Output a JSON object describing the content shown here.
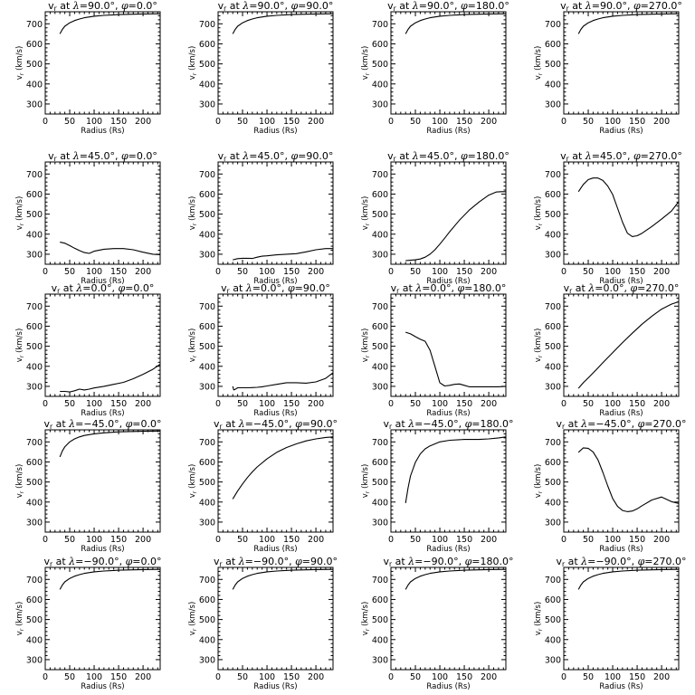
{
  "chart_data": [
    {
      "type": "line",
      "title": "v$_r$ at λ=90.0°, φ=0.0°",
      "title_parts": [
        "v",
        "r",
        " at ",
        "λ",
        "=90.0°, ",
        "φ",
        "=0.0°"
      ],
      "xlabel": "Radius (Rs)",
      "ylabel": "v$_r$ (km/s)",
      "xlim": [
        0,
        235
      ],
      "ylim": [
        250,
        760
      ],
      "xticks": [
        0,
        50,
        100,
        150,
        200
      ],
      "yticks": [
        300,
        400,
        500,
        600,
        700
      ],
      "x": [
        30,
        35,
        40,
        50,
        60,
        70,
        80,
        100,
        120,
        150,
        180,
        200,
        235
      ],
      "y": [
        650,
        672,
        688,
        705,
        716,
        724,
        730,
        738,
        742,
        746,
        748,
        749,
        750
      ]
    },
    {
      "type": "line",
      "title": "v$_r$ at λ=90.0°, φ=90.0°",
      "title_parts": [
        "v",
        "r",
        " at ",
        "λ",
        "=90.0°, ",
        "φ",
        "=90.0°"
      ],
      "xlabel": "Radius (Rs)",
      "ylabel": "v$_r$ (km/s)",
      "xlim": [
        0,
        235
      ],
      "ylim": [
        250,
        760
      ],
      "xticks": [
        0,
        50,
        100,
        150,
        200
      ],
      "yticks": [
        300,
        400,
        500,
        600,
        700
      ],
      "x": [
        30,
        35,
        40,
        50,
        60,
        70,
        80,
        100,
        120,
        150,
        180,
        200,
        235
      ],
      "y": [
        650,
        672,
        688,
        705,
        716,
        724,
        730,
        738,
        742,
        746,
        748,
        749,
        750
      ]
    },
    {
      "type": "line",
      "title": "v$_r$ at λ=90.0°, φ=180.0°",
      "title_parts": [
        "v",
        "r",
        " at ",
        "λ",
        "=90.0°, ",
        "φ",
        "=180.0°"
      ],
      "xlabel": "Radius (Rs)",
      "ylabel": "v$_r$ (km/s)",
      "xlim": [
        0,
        235
      ],
      "ylim": [
        250,
        760
      ],
      "xticks": [
        0,
        50,
        100,
        150,
        200
      ],
      "yticks": [
        300,
        400,
        500,
        600,
        700
      ],
      "x": [
        30,
        35,
        40,
        50,
        60,
        70,
        80,
        100,
        120,
        150,
        180,
        200,
        235
      ],
      "y": [
        650,
        672,
        688,
        705,
        716,
        724,
        730,
        738,
        742,
        746,
        748,
        749,
        750
      ]
    },
    {
      "type": "line",
      "title": "v$_r$ at λ=90.0°, φ=270.0°",
      "title_parts": [
        "v",
        "r",
        " at ",
        "λ",
        "=90.0°, ",
        "φ",
        "=270.0°"
      ],
      "xlabel": "Radius (Rs)",
      "ylabel": "v$_r$ (km/s)",
      "xlim": [
        0,
        235
      ],
      "ylim": [
        250,
        760
      ],
      "xticks": [
        0,
        50,
        100,
        150,
        200
      ],
      "yticks": [
        300,
        400,
        500,
        600,
        700
      ],
      "x": [
        30,
        35,
        40,
        50,
        60,
        70,
        80,
        100,
        120,
        150,
        180,
        200,
        235
      ],
      "y": [
        650,
        672,
        688,
        705,
        716,
        724,
        730,
        738,
        742,
        746,
        748,
        749,
        750
      ]
    },
    {
      "type": "line",
      "title": "v$_r$ at λ=45.0°, φ=0.0°",
      "title_parts": [
        "v",
        "r",
        " at ",
        "λ",
        "=45.0°, ",
        "φ",
        "=0.0°"
      ],
      "xlabel": "Radius (Rs)",
      "ylabel": "v$_r$ (km/s)",
      "xlim": [
        0,
        235
      ],
      "ylim": [
        250,
        760
      ],
      "xticks": [
        0,
        50,
        100,
        150,
        200
      ],
      "yticks": [
        300,
        400,
        500,
        600,
        700
      ],
      "x": [
        30,
        40,
        50,
        60,
        70,
        80,
        90,
        100,
        120,
        140,
        160,
        180,
        200,
        220,
        235
      ],
      "y": [
        360,
        355,
        343,
        330,
        318,
        308,
        304,
        315,
        325,
        328,
        328,
        322,
        310,
        300,
        298
      ]
    },
    {
      "type": "line",
      "title": "v$_r$ at λ=45.0°, φ=90.0°",
      "title_parts": [
        "v",
        "r",
        " at ",
        "λ",
        "=45.0°, ",
        "φ",
        "=90.0°"
      ],
      "xlabel": "Radius (Rs)",
      "ylabel": "v$_r$ (km/s)",
      "xlim": [
        0,
        235
      ],
      "ylim": [
        250,
        760
      ],
      "xticks": [
        0,
        50,
        100,
        150,
        200
      ],
      "yticks": [
        300,
        400,
        500,
        600,
        700
      ],
      "x": [
        30,
        40,
        50,
        60,
        70,
        80,
        90,
        100,
        120,
        140,
        160,
        180,
        200,
        220,
        235
      ],
      "y": [
        272,
        278,
        280,
        280,
        279,
        285,
        290,
        292,
        297,
        300,
        303,
        312,
        322,
        328,
        328
      ]
    },
    {
      "type": "line",
      "title": "v$_r$ at λ=45.0°, φ=180.0°",
      "title_parts": [
        "v",
        "r",
        " at ",
        "λ",
        "=45.0°, ",
        "φ",
        "=180.0°"
      ],
      "xlabel": "Radius (Rs)",
      "ylabel": "v$_r$ (km/s)",
      "xlim": [
        0,
        235
      ],
      "ylim": [
        250,
        760
      ],
      "xticks": [
        0,
        50,
        100,
        150,
        200
      ],
      "yticks": [
        300,
        400,
        500,
        600,
        700
      ],
      "x": [
        30,
        40,
        50,
        60,
        70,
        80,
        90,
        100,
        110,
        120,
        140,
        160,
        180,
        200,
        215,
        225,
        235
      ],
      "y": [
        268,
        270,
        272,
        276,
        285,
        300,
        322,
        350,
        380,
        412,
        470,
        520,
        560,
        595,
        610,
        612,
        612
      ]
    },
    {
      "type": "line",
      "title": "v$_r$ at λ=45.0°, φ=270.0°",
      "title_parts": [
        "v",
        "r",
        " at ",
        "λ",
        "=45.0°, ",
        "φ",
        "=270.0°"
      ],
      "xlabel": "Radius (Rs)",
      "ylabel": "v$_r$ (km/s)",
      "xlim": [
        0,
        235
      ],
      "ylim": [
        250,
        760
      ],
      "xticks": [
        0,
        50,
        100,
        150,
        200
      ],
      "yticks": [
        300,
        400,
        500,
        600,
        700
      ],
      "x": [
        30,
        40,
        50,
        60,
        70,
        80,
        90,
        100,
        110,
        120,
        130,
        140,
        150,
        160,
        180,
        200,
        220,
        235
      ],
      "y": [
        612,
        648,
        672,
        680,
        680,
        668,
        640,
        598,
        530,
        460,
        405,
        388,
        392,
        405,
        438,
        475,
        515,
        562
      ]
    },
    {
      "type": "line",
      "title": "v$_r$ at λ=0.0°, φ=0.0°",
      "title_parts": [
        "v",
        "r",
        " at ",
        "λ",
        "=0.0°, ",
        "φ",
        "=0.0°"
      ],
      "xlabel": "Radius (Rs)",
      "ylabel": "v$_r$ (km/s)",
      "xlim": [
        0,
        235
      ],
      "ylim": [
        250,
        760
      ],
      "xticks": [
        0,
        50,
        100,
        150,
        200
      ],
      "yticks": [
        300,
        400,
        500,
        600,
        700
      ],
      "x": [
        30,
        40,
        50,
        60,
        70,
        80,
        90,
        100,
        120,
        140,
        160,
        180,
        200,
        220,
        235
      ],
      "y": [
        275,
        275,
        272,
        278,
        286,
        282,
        286,
        292,
        300,
        310,
        320,
        338,
        360,
        385,
        410
      ]
    },
    {
      "type": "line",
      "title": "v$_r$ at λ=0.0°, φ=90.0°",
      "title_parts": [
        "v",
        "r",
        " at ",
        "λ",
        "=0.0°, ",
        "φ",
        "=90.0°"
      ],
      "xlabel": "Radius (Rs)",
      "ylabel": "v$_r$ (km/s)",
      "xlim": [
        0,
        235
      ],
      "ylim": [
        250,
        760
      ],
      "xticks": [
        0,
        50,
        100,
        150,
        200
      ],
      "yticks": [
        300,
        400,
        500,
        600,
        700
      ],
      "x": [
        30,
        32,
        35,
        40,
        50,
        60,
        70,
        80,
        90,
        100,
        120,
        140,
        160,
        180,
        200,
        220,
        235
      ],
      "y": [
        300,
        282,
        285,
        293,
        293,
        293,
        294,
        295,
        298,
        302,
        310,
        318,
        318,
        316,
        322,
        340,
        368
      ]
    },
    {
      "type": "line",
      "title": "v$_r$ at λ=0.0°, φ=180.0°",
      "title_parts": [
        "v",
        "r",
        " at ",
        "λ",
        "=0.0°, ",
        "φ",
        "=180.0°"
      ],
      "xlabel": "Radius (Rs)",
      "ylabel": "v$_r$ (km/s)",
      "xlim": [
        0,
        235
      ],
      "ylim": [
        250,
        760
      ],
      "xticks": [
        0,
        50,
        100,
        150,
        200
      ],
      "yticks": [
        300,
        400,
        500,
        600,
        700
      ],
      "x": [
        30,
        40,
        50,
        60,
        70,
        80,
        90,
        100,
        110,
        120,
        130,
        140,
        150,
        160,
        180,
        200,
        220,
        235
      ],
      "y": [
        570,
        562,
        548,
        535,
        525,
        480,
        400,
        318,
        302,
        305,
        310,
        312,
        305,
        298,
        298,
        298,
        298,
        300
      ]
    },
    {
      "type": "line",
      "title": "v$_r$ at λ=0.0°, φ=270.0°",
      "title_parts": [
        "v",
        "r",
        " at ",
        "λ",
        "=0.0°, ",
        "φ",
        "=270.0°"
      ],
      "xlabel": "Radius (Rs)",
      "ylabel": "v$_r$ (km/s)",
      "xlim": [
        0,
        235
      ],
      "ylim": [
        250,
        760
      ],
      "xticks": [
        0,
        50,
        100,
        150,
        200
      ],
      "yticks": [
        300,
        400,
        500,
        600,
        700
      ],
      "x": [
        30,
        40,
        50,
        60,
        70,
        80,
        100,
        120,
        140,
        160,
        180,
        200,
        220,
        235
      ],
      "y": [
        290,
        318,
        342,
        367,
        392,
        418,
        468,
        518,
        565,
        610,
        650,
        685,
        710,
        722
      ]
    },
    {
      "type": "line",
      "title": "v$_r$ at λ=-45.0°, φ=0.0°",
      "title_parts": [
        "v",
        "r",
        " at ",
        "λ",
        "=−45.0°, ",
        "φ",
        "=0.0°"
      ],
      "xlabel": "Radius (Rs)",
      "ylabel": "v$_r$ (km/s)",
      "xlim": [
        0,
        235
      ],
      "ylim": [
        250,
        760
      ],
      "xticks": [
        0,
        50,
        100,
        150,
        200
      ],
      "yticks": [
        300,
        400,
        500,
        600,
        700
      ],
      "x": [
        30,
        35,
        40,
        50,
        60,
        70,
        80,
        100,
        120,
        150,
        180,
        200,
        235
      ],
      "y": [
        625,
        655,
        675,
        700,
        715,
        725,
        732,
        740,
        745,
        750,
        752,
        753,
        754
      ]
    },
    {
      "type": "line",
      "title": "v$_r$ at λ=-45.0°, φ=90.0°",
      "title_parts": [
        "v",
        "r",
        " at ",
        "λ",
        "=−45.0°, ",
        "φ",
        "=90.0°"
      ],
      "xlabel": "Radius (Rs)",
      "ylabel": "v$_r$ (km/s)",
      "xlim": [
        0,
        235
      ],
      "ylim": [
        250,
        760
      ],
      "xticks": [
        0,
        50,
        100,
        150,
        200
      ],
      "yticks": [
        300,
        400,
        500,
        600,
        700
      ],
      "x": [
        30,
        40,
        50,
        60,
        70,
        80,
        100,
        120,
        140,
        160,
        180,
        200,
        220,
        235
      ],
      "y": [
        415,
        455,
        490,
        522,
        550,
        575,
        615,
        648,
        672,
        690,
        705,
        715,
        722,
        725
      ]
    },
    {
      "type": "line",
      "title": "v$_r$ at λ=-45.0°, φ=180.0°",
      "title_parts": [
        "v",
        "r",
        " at ",
        "λ",
        "=−45.0°, ",
        "φ",
        "=180.0°"
      ],
      "xlabel": "Radius (Rs)",
      "ylabel": "v$_r$ (km/s)",
      "xlim": [
        0,
        235
      ],
      "ylim": [
        250,
        760
      ],
      "xticks": [
        0,
        50,
        100,
        150,
        200
      ],
      "yticks": [
        300,
        400,
        500,
        600,
        700
      ],
      "x": [
        30,
        35,
        40,
        50,
        60,
        70,
        80,
        90,
        100,
        120,
        150,
        180,
        200,
        220,
        235
      ],
      "y": [
        395,
        470,
        530,
        598,
        640,
        665,
        680,
        690,
        700,
        708,
        712,
        712,
        715,
        720,
        725
      ]
    },
    {
      "type": "line",
      "title": "v$_r$ at λ=-45.0°, φ=270.0°",
      "title_parts": [
        "v",
        "r",
        " at ",
        "λ",
        "=−45.0°, ",
        "φ",
        "=270.0°"
      ],
      "xlabel": "Radius (Rs)",
      "ylabel": "v$_r$ (km/s)",
      "xlim": [
        0,
        235
      ],
      "ylim": [
        250,
        760
      ],
      "xticks": [
        0,
        50,
        100,
        150,
        200
      ],
      "yticks": [
        300,
        400,
        500,
        600,
        700
      ],
      "x": [
        30,
        40,
        50,
        60,
        70,
        80,
        90,
        100,
        110,
        120,
        130,
        140,
        150,
        160,
        180,
        200,
        220,
        235
      ],
      "y": [
        648,
        670,
        668,
        650,
        610,
        548,
        480,
        418,
        378,
        358,
        352,
        355,
        366,
        382,
        410,
        425,
        402,
        393
      ]
    },
    {
      "type": "line",
      "title": "v$_r$ at λ=-90.0°, φ=0.0°",
      "title_parts": [
        "v",
        "r",
        " at ",
        "λ",
        "=−90.0°, ",
        "φ",
        "=0.0°"
      ],
      "xlabel": "Radius (Rs)",
      "ylabel": "v$_r$ (km/s)",
      "xlim": [
        0,
        235
      ],
      "ylim": [
        250,
        760
      ],
      "xticks": [
        0,
        50,
        100,
        150,
        200
      ],
      "yticks": [
        300,
        400,
        500,
        600,
        700
      ],
      "x": [
        30,
        35,
        40,
        50,
        60,
        70,
        80,
        100,
        120,
        150,
        180,
        200,
        235
      ],
      "y": [
        650,
        672,
        688,
        705,
        716,
        724,
        730,
        738,
        742,
        746,
        748,
        749,
        750
      ]
    },
    {
      "type": "line",
      "title": "v$_r$ at λ=-90.0°, φ=90.0°",
      "title_parts": [
        "v",
        "r",
        " at ",
        "λ",
        "=−90.0°, ",
        "φ",
        "=90.0°"
      ],
      "xlabel": "Radius (Rs)",
      "ylabel": "v$_r$ (km/s)",
      "xlim": [
        0,
        235
      ],
      "ylim": [
        250,
        760
      ],
      "xticks": [
        0,
        50,
        100,
        150,
        200
      ],
      "yticks": [
        300,
        400,
        500,
        600,
        700
      ],
      "x": [
        30,
        35,
        40,
        50,
        60,
        70,
        80,
        100,
        120,
        150,
        180,
        200,
        235
      ],
      "y": [
        650,
        672,
        688,
        705,
        716,
        724,
        730,
        738,
        742,
        746,
        748,
        749,
        750
      ]
    },
    {
      "type": "line",
      "title": "v$_r$ at λ=-90.0°, φ=180.0°",
      "title_parts": [
        "v",
        "r",
        " at ",
        "λ",
        "=−90.0°, ",
        "φ",
        "=180.0°"
      ],
      "xlabel": "Radius (Rs)",
      "ylabel": "v$_r$ (km/s)",
      "xlim": [
        0,
        235
      ],
      "ylim": [
        250,
        760
      ],
      "xticks": [
        0,
        50,
        100,
        150,
        200
      ],
      "yticks": [
        300,
        400,
        500,
        600,
        700
      ],
      "x": [
        30,
        35,
        40,
        50,
        60,
        70,
        80,
        100,
        120,
        150,
        180,
        200,
        235
      ],
      "y": [
        650,
        672,
        688,
        705,
        716,
        724,
        730,
        738,
        742,
        746,
        748,
        749,
        750
      ]
    },
    {
      "type": "line",
      "title": "v$_r$ at λ=-90.0°, φ=270.0°",
      "title_parts": [
        "v",
        "r",
        " at ",
        "λ",
        "=−90.0°, ",
        "φ",
        "=270.0°"
      ],
      "xlabel": "Radius (Rs)",
      "ylabel": "v$_r$ (km/s)",
      "xlim": [
        0,
        235
      ],
      "ylim": [
        250,
        760
      ],
      "xticks": [
        0,
        50,
        100,
        150,
        200
      ],
      "yticks": [
        300,
        400,
        500,
        600,
        700
      ],
      "x": [
        30,
        35,
        40,
        50,
        60,
        70,
        80,
        100,
        120,
        150,
        180,
        200,
        235
      ],
      "y": [
        650,
        672,
        688,
        705,
        716,
        724,
        730,
        738,
        742,
        746,
        748,
        749,
        750
      ]
    }
  ]
}
